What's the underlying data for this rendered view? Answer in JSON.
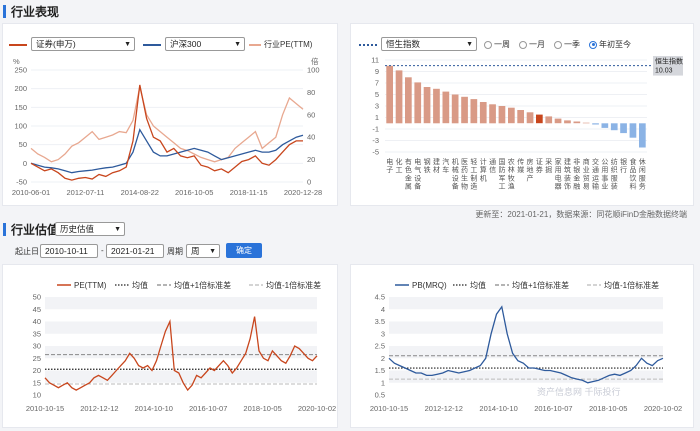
{
  "industry_performance": {
    "section_title": "行业表现",
    "left_chart": {
      "series1_select": "证券(申万)",
      "series2_select": "沪深300",
      "series3_label": "行业PE(TTM)",
      "colors": {
        "industry": "#c8461d",
        "index": "#2e5a9c",
        "pe": "#e8a890"
      }
    },
    "right_chart": {
      "benchmark_select": "恒生指数",
      "period_options": [
        "一周",
        "一月",
        "一季",
        "年初至今"
      ],
      "selected_period": "年初至今",
      "benchmark_tag_title": "恒生指数",
      "benchmark_tag_value": "10.03"
    },
    "footnote": "更新至：2021-01-21，数据来源：同花顺iFinD金融数据终端"
  },
  "industry_valuation": {
    "section_title": "行业估值",
    "view_select": "历史估值",
    "start_label": "起止日",
    "start_date": "2010-10-11",
    "range_sep": "-",
    "end_date": "2021-01-21",
    "period_label": "周期",
    "period_value": "周",
    "confirm_button": "确定",
    "watermark": "资产信息网  千际投行"
  },
  "chart_data": [
    {
      "type": "line",
      "title": "",
      "x_ticks": [
        "2010-06-01",
        "2012-07-11",
        "2014-08-22",
        "2016-10-05",
        "2018-11-15",
        "2020-12-28"
      ],
      "y_left_label": "%",
      "y_right_label": "倍",
      "y_left_ticks": [
        -50,
        0,
        50,
        100,
        150,
        200,
        250
      ],
      "y_right_ticks": [
        0,
        20,
        40,
        60,
        80,
        100
      ],
      "series": [
        {
          "name": "证券(申万)",
          "axis": "left",
          "color": "#c8461d",
          "values": [
            0,
            -10,
            -20,
            -15,
            -25,
            -40,
            -45,
            -40,
            -38,
            -42,
            -30,
            -35,
            -25,
            -20,
            -10,
            60,
            210,
            120,
            70,
            60,
            30,
            40,
            20,
            15,
            20,
            -5,
            -10,
            -20,
            -15,
            -25,
            -10,
            5,
            10,
            20,
            0,
            -5,
            10,
            30,
            50,
            60,
            60
          ]
        },
        {
          "name": "沪深300",
          "axis": "left",
          "color": "#2e5a9c",
          "values": [
            0,
            -5,
            -10,
            -12,
            -15,
            -20,
            -25,
            -22,
            -20,
            -18,
            -15,
            -12,
            -10,
            -5,
            0,
            30,
            90,
            60,
            30,
            20,
            20,
            25,
            30,
            35,
            40,
            35,
            30,
            20,
            10,
            15,
            20,
            25,
            30,
            35,
            30,
            30,
            35,
            50,
            60,
            70,
            75
          ]
        },
        {
          "name": "行业PE(TTM)",
          "axis": "right",
          "color": "#e8a890",
          "values": [
            30,
            25,
            22,
            18,
            20,
            25,
            32,
            35,
            40,
            45,
            38,
            40,
            42,
            45,
            44,
            55,
            85,
            60,
            50,
            45,
            40,
            35,
            30,
            28,
            25,
            22,
            20,
            18,
            20,
            22,
            30,
            35,
            40,
            45,
            30,
            35,
            40,
            60,
            75,
            70,
            65
          ]
        }
      ]
    },
    {
      "type": "bar",
      "title": "",
      "benchmark": {
        "name": "恒生指数",
        "value": 10.03
      },
      "ylim": [
        -5,
        11
      ],
      "y_ticks": [
        -5,
        -3,
        -1,
        1,
        3,
        5,
        7,
        9,
        11
      ],
      "categories": [
        "电子",
        "化工",
        "有色金属",
        "电气设备",
        "钢铁",
        "建材",
        "汽车",
        "机械设备",
        "医药生物",
        "轻工制造",
        "计算机",
        "通信",
        "国防军工",
        "农林牧渔",
        "传媒",
        "房地产",
        "证券",
        "采掘",
        "家用电器",
        "建筑装饰",
        "非银金融",
        "商业贸易",
        "交通运输",
        "公用事业",
        "纺织服装",
        "银行",
        "食品饮料",
        "休闲服务"
      ],
      "values": [
        10.0,
        9.2,
        8.0,
        7.1,
        6.3,
        6.0,
        5.5,
        5.0,
        4.6,
        4.2,
        3.7,
        3.3,
        3.0,
        2.7,
        2.3,
        1.9,
        1.5,
        1.2,
        0.8,
        0.5,
        0.3,
        0.1,
        -0.2,
        -0.8,
        -1.2,
        -1.7,
        -2.5,
        -4.2
      ],
      "highlight": "证券",
      "colors": {
        "positive": "#d99a86",
        "negative": "#8bb3e5",
        "highlight": "#c8461d",
        "benchmark_line": "#2e5a9c"
      }
    },
    {
      "type": "line",
      "title": "",
      "legend": [
        "PE(TTM)",
        "均值",
        "均值+1倍标准差",
        "均值-1倍标准差"
      ],
      "x_ticks": [
        "2010-10-15",
        "2012-12-12",
        "2014-10-10",
        "2016-10-07",
        "2018-10-05",
        "2020-10-02"
      ],
      "y_ticks": [
        10,
        15,
        20,
        25,
        30,
        35,
        40,
        45,
        50
      ],
      "ylim": [
        10,
        50
      ],
      "mean": 20.5,
      "upper": 26.5,
      "lower": 14.5,
      "series": [
        {
          "name": "PE(TTM)",
          "color": "#c8461d",
          "values": [
            17,
            15,
            14,
            13,
            14,
            15,
            13,
            12,
            13,
            14,
            15,
            17,
            18,
            17,
            16,
            18,
            20,
            22,
            24,
            27,
            25,
            22,
            21,
            22,
            20,
            24,
            30,
            36,
            40,
            20,
            19,
            15,
            12,
            14,
            18,
            17,
            19,
            21,
            20,
            22,
            24,
            22,
            19,
            21,
            24,
            27,
            33,
            42,
            28,
            25,
            24,
            28,
            26,
            24,
            23,
            26,
            30,
            29,
            27,
            25,
            24,
            26
          ]
        }
      ]
    },
    {
      "type": "line",
      "title": "",
      "legend": [
        "PB(MRQ)",
        "均值",
        "均值+1倍标准差",
        "均值-1倍标准差"
      ],
      "x_ticks": [
        "2010-10-15",
        "2012-12-12",
        "2014-10-10",
        "2016-10-07",
        "2018-10-05",
        "2020-10-02"
      ],
      "y_ticks": [
        0.5,
        1,
        1.5,
        2,
        2.5,
        3,
        3.5,
        4,
        4.5
      ],
      "ylim": [
        0.5,
        4.5
      ],
      "mean": 1.6,
      "upper": 2.1,
      "lower": 1.15,
      "series": [
        {
          "name": "PB(MRQ)",
          "color": "#2e5a9c",
          "values": [
            2.0,
            1.8,
            1.7,
            1.6,
            1.5,
            1.4,
            1.4,
            1.3,
            1.3,
            1.35,
            1.4,
            1.5,
            1.45,
            1.4,
            1.45,
            1.5,
            1.6,
            1.7,
            2.0,
            3.0,
            3.8,
            4.1,
            3.0,
            2.2,
            1.9,
            1.8,
            1.6,
            1.6,
            1.55,
            1.5,
            1.5,
            1.45,
            1.4,
            1.3,
            1.2,
            1.15,
            1.1,
            1.0,
            1.05,
            1.1,
            1.2,
            1.3,
            1.35,
            1.3,
            1.4,
            1.5,
            1.7,
            2.0,
            1.8,
            1.7,
            1.9,
            2.0
          ]
        }
      ]
    }
  ]
}
